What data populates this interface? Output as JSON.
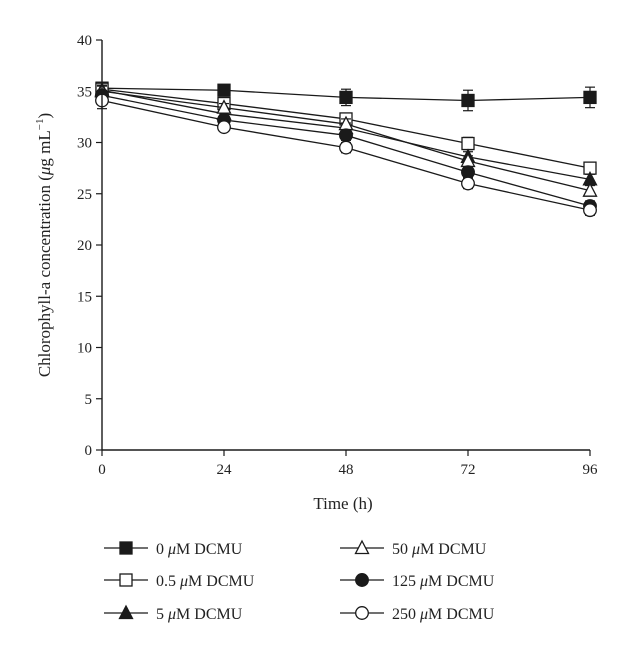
{
  "chart_data": {
    "type": "line",
    "xlabel": "Time (h)",
    "ylabel": {
      "prefix": "Chlorophyll-a concentration (",
      "mu": "μ",
      "unit": "g mL",
      "sup": "−1",
      "suffix": ")"
    },
    "x": [
      0,
      24,
      48,
      72,
      96
    ],
    "xlim": [
      0,
      96
    ],
    "ylim": [
      0,
      40
    ],
    "xticks": [
      "0",
      "24",
      "48",
      "72",
      "96"
    ],
    "yticks": [
      "0",
      "5",
      "10",
      "15",
      "20",
      "25",
      "30",
      "35",
      "40"
    ],
    "grid": false,
    "legend_position": "bottom",
    "series": [
      {
        "name": "0 μM DCMU",
        "label": {
          "num": "0",
          "mu": "μ",
          "rest": "M DCMU"
        },
        "marker": "square",
        "filled": true,
        "values": [
          35.3,
          35.1,
          34.4,
          34.1,
          34.4
        ],
        "errors": [
          0.5,
          0.3,
          0.8,
          1.0,
          1.0
        ]
      },
      {
        "name": "0.5 μM DCMU",
        "label": {
          "num": "0.5",
          "mu": "μ",
          "rest": "M DCMU"
        },
        "marker": "square",
        "filled": false,
        "values": [
          35.2,
          33.8,
          32.3,
          29.9,
          27.5
        ],
        "errors": [
          0.5,
          0.4,
          0.5,
          0.6,
          0.5
        ]
      },
      {
        "name": "5 μM DCMU",
        "label": {
          "num": "5",
          "mu": "μ",
          "rest": "M DCMU"
        },
        "marker": "triangle",
        "filled": true,
        "values": [
          35.1,
          32.8,
          31.4,
          28.6,
          26.4
        ],
        "errors": [
          0.5,
          0.4,
          0.5,
          0.5,
          0.5
        ]
      },
      {
        "name": "50 μM DCMU",
        "label": {
          "num": "50",
          "mu": "μ",
          "rest": "M DCMU"
        },
        "marker": "triangle",
        "filled": false,
        "values": [
          35.0,
          33.4,
          31.8,
          28.2,
          25.3
        ],
        "errors": [
          0.5,
          0.4,
          0.5,
          0.5,
          0.5
        ]
      },
      {
        "name": "125 μM DCMU",
        "label": {
          "num": "125",
          "mu": "μ",
          "rest": "M DCMU"
        },
        "marker": "circle",
        "filled": true,
        "values": [
          34.6,
          32.2,
          30.7,
          27.1,
          23.8
        ],
        "errors": [
          0.5,
          0.4,
          0.5,
          0.5,
          0.5
        ]
      },
      {
        "name": "250 μM DCMU",
        "label": {
          "num": "250",
          "mu": "μ",
          "rest": "M DCMU"
        },
        "marker": "circle",
        "filled": false,
        "values": [
          34.1,
          31.5,
          29.5,
          26.0,
          23.4
        ],
        "errors": [
          0.8,
          0.4,
          0.5,
          0.5,
          0.5
        ]
      }
    ],
    "colors": {
      "line": "#1a1a1a",
      "marker_fill": "#1a1a1a",
      "marker_open": "#ffffff"
    }
  }
}
